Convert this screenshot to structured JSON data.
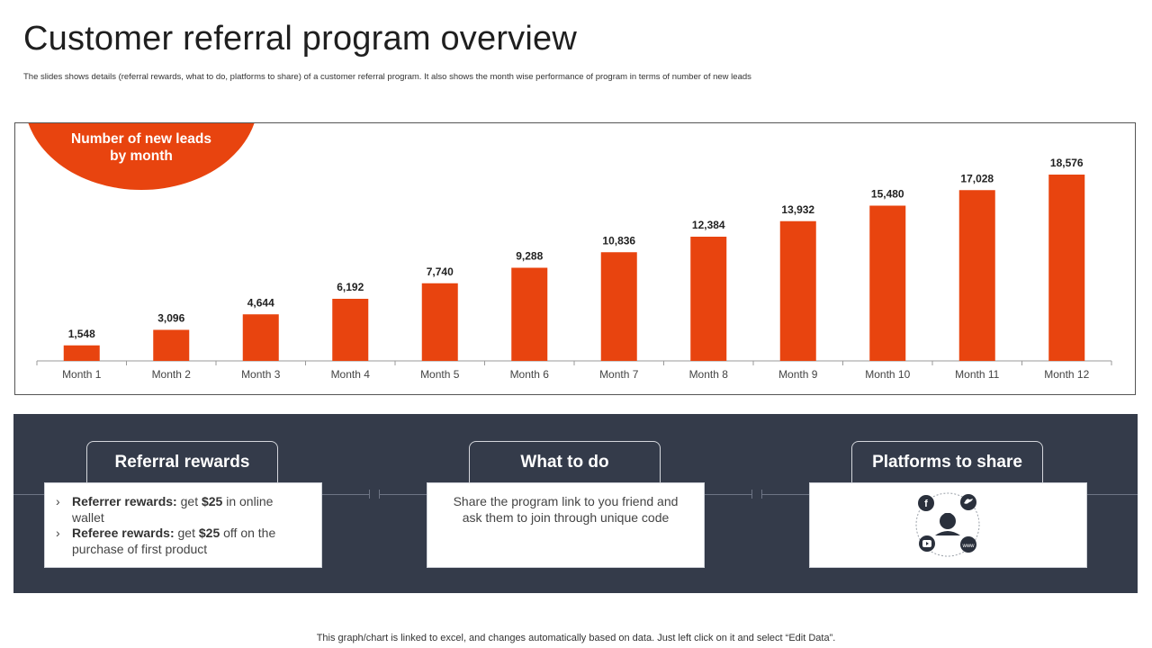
{
  "header": {
    "title": "Customer referral program overview",
    "subtitle": "The slides shows details (referral rewards, what to do, platforms to share) of a customer referral program. It also shows the month wise performance of program in terms of number of new leads"
  },
  "chart_badge": "Number of new leads by month",
  "chart_data": {
    "type": "bar",
    "title": "Number of new leads by month",
    "categories": [
      "Month 1",
      "Month 2",
      "Month 3",
      "Month 4",
      "Month 5",
      "Month 6",
      "Month 7",
      "Month 8",
      "Month 9",
      "Month 10",
      "Month 11",
      "Month 12"
    ],
    "values": [
      1548,
      3096,
      4644,
      6192,
      7740,
      9288,
      10836,
      12384,
      13932,
      15480,
      17028,
      18576
    ],
    "value_labels": [
      "1,548",
      "3,096",
      "4,644",
      "6,192",
      "7,740",
      "9,288",
      "10,836",
      "12,384",
      "13,932",
      "15,480",
      "17,028",
      "18,576"
    ],
    "xlabel": "",
    "ylabel": "",
    "ylim": [
      0,
      18576
    ],
    "grid": false,
    "bar_color": "#e8440f"
  },
  "panel": {
    "rewards": {
      "tab_label": "Referral rewards",
      "items": [
        {
          "label": "Referrer rewards:",
          "pre": " get ",
          "amount": "$25",
          "post": " in online wallet"
        },
        {
          "label": "Referee rewards:",
          "pre": " get ",
          "amount": "$25",
          "post": " off on the purchase of first product"
        }
      ]
    },
    "todo": {
      "tab_label": "What to do",
      "text": "Share the program link to you friend and ask them to join through unique code"
    },
    "platforms": {
      "tab_label": "Platforms to share",
      "icons": [
        "facebook-icon",
        "twitter-icon",
        "user-bell-icon",
        "youtube-icon",
        "www-icon"
      ],
      "www_text": "www"
    }
  },
  "footer": {
    "note": "This graph/chart is linked to excel,  and changes automatically based on data. Just left click on it and select “Edit Data”."
  },
  "colors": {
    "accent": "#e8440f",
    "panel": "#343b4a"
  }
}
